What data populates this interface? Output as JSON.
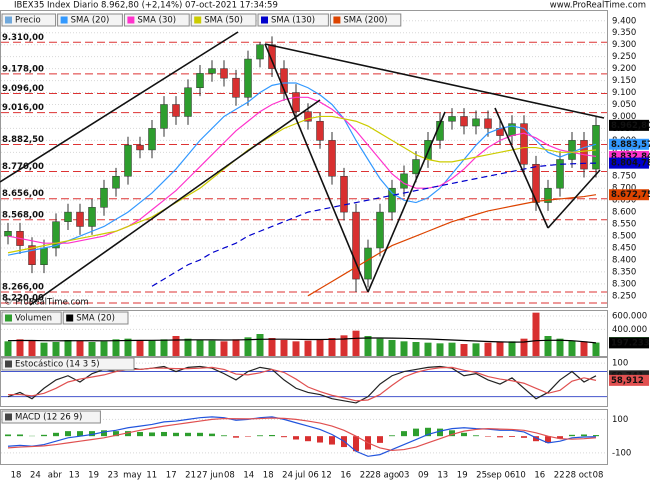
{
  "chart_data": [
    {
      "type": "candlestick",
      "title": "IBEX35 Index Diario 8.962,80 (+2,14%) 07-oct-2021 17:34:59",
      "watermark": "www.ProRealTime.com",
      "copyright": "© ProRealTime.com",
      "legend_title": "Precio",
      "color_up": "#2e9e2e",
      "color_down": "#d83030",
      "open": [
        8500,
        8520,
        8460,
        8380,
        8450,
        8560,
        8600,
        8540,
        8620,
        8700,
        8750,
        8880,
        8860,
        8950,
        9050,
        9000,
        9120,
        9180,
        9200,
        9160,
        9080,
        9240,
        9300,
        9200,
        9100,
        9020,
        8980,
        8900,
        8750,
        8600,
        8320,
        8450,
        8600,
        8700,
        8760,
        8820,
        8900,
        8980,
        9000,
        8960,
        8990,
        8950,
        8920,
        8970,
        8800,
        8640,
        8700,
        8820,
        8900,
        8780
      ],
      "high": [
        8555,
        8555,
        8495,
        8485,
        8595,
        8635,
        8635,
        8655,
        8735,
        8785,
        8915,
        8915,
        8985,
        9085,
        9085,
        9155,
        9215,
        9235,
        9235,
        9195,
        9275,
        9310,
        9335,
        9235,
        9135,
        9055,
        9015,
        8935,
        8785,
        8635,
        8485,
        8635,
        8735,
        8795,
        8855,
        8935,
        9015,
        9035,
        9035,
        9025,
        9025,
        8985,
        9005,
        9005,
        8835,
        8735,
        8855,
        8935,
        8935,
        8997.8
      ],
      "low": [
        8465,
        8425,
        8345,
        8345,
        8415,
        8525,
        8505,
        8505,
        8585,
        8665,
        8715,
        8825,
        8825,
        8915,
        8965,
        8965,
        9085,
        9145,
        9125,
        9045,
        9045,
        9205,
        9165,
        9065,
        8985,
        8945,
        8865,
        8715,
        8565,
        8266,
        8285,
        8415,
        8565,
        8665,
        8725,
        8785,
        8865,
        8945,
        8925,
        8925,
        8915,
        8885,
        8885,
        8765,
        8605,
        8605,
        8665,
        8785,
        8745,
        8745
      ],
      "close": [
        8520,
        8460,
        8380,
        8450,
        8560,
        8600,
        8540,
        8620,
        8700,
        8750,
        8880,
        8860,
        8950,
        9050,
        9000,
        9120,
        9180,
        9200,
        9160,
        9080,
        9240,
        9300,
        9200,
        9100,
        9020,
        8980,
        8900,
        8750,
        8600,
        8320,
        8450,
        8600,
        8700,
        8760,
        8820,
        8900,
        8980,
        9000,
        8960,
        8990,
        8950,
        8920,
        8970,
        8800,
        8640,
        8700,
        8820,
        8900,
        8780,
        8962.8
      ],
      "close_label": "8.962,80",
      "series": [
        {
          "name": "SMA (20)",
          "color": "#3399ff",
          "last_label": "8.883,57",
          "values": [
            8420,
            8430,
            8440,
            8450,
            8460,
            8480,
            8500,
            8520,
            8540,
            8570,
            8600,
            8640,
            8680,
            8730,
            8780,
            8840,
            8900,
            8950,
            9000,
            9030,
            9060,
            9100,
            9130,
            9140,
            9140,
            9120,
            9090,
            9050,
            8990,
            8900,
            8820,
            8740,
            8680,
            8650,
            8640,
            8660,
            8700,
            8760,
            8820,
            8880,
            8930,
            8950,
            8960,
            8950,
            8900,
            8850,
            8830,
            8850,
            8870,
            8883.57
          ]
        },
        {
          "name": "SMA (30)",
          "color": "#ff33cc",
          "last_label": "8.832,84",
          "values": [
            8500,
            8490,
            8480,
            8470,
            8470,
            8470,
            8480,
            8490,
            8500,
            8520,
            8540,
            8570,
            8610,
            8650,
            8690,
            8740,
            8790,
            8840,
            8890,
            8940,
            8980,
            9020,
            9050,
            9070,
            9080,
            9080,
            9060,
            9030,
            8990,
            8940,
            8880,
            8820,
            8760,
            8720,
            8700,
            8700,
            8710,
            8740,
            8780,
            8830,
            8870,
            8900,
            8920,
            8930,
            8910,
            8880,
            8860,
            8850,
            8840,
            8832.84
          ]
        },
        {
          "name": "SMA (50)",
          "color": "#cccc00",
          "values": [
            8430,
            8440,
            8450,
            8460,
            8470,
            8480,
            8490,
            8500,
            8510,
            8520,
            8540,
            8560,
            8580,
            8610,
            8640,
            8670,
            8700,
            8740,
            8780,
            8820,
            8860,
            8890,
            8920,
            8950,
            8970,
            8990,
            9000,
            9000,
            8990,
            8980,
            8960,
            8930,
            8900,
            8870,
            8840,
            8820,
            8810,
            8810,
            8820,
            8830,
            8840,
            8850,
            8860,
            8870,
            8870,
            8860,
            8850,
            8850,
            8855,
            8860
          ]
        },
        {
          "name": "SMA (130)",
          "color": "#0000cc",
          "dashed": true,
          "last_label": "8.804,78",
          "values": [
            null,
            null,
            null,
            null,
            null,
            null,
            null,
            null,
            null,
            null,
            null,
            null,
            8290,
            8320,
            8350,
            8380,
            8400,
            8430,
            8450,
            8470,
            8500,
            8520,
            8540,
            8560,
            8580,
            8600,
            8610,
            8620,
            8630,
            8640,
            8650,
            8660,
            8670,
            8680,
            8690,
            8700,
            8710,
            8720,
            8730,
            8740,
            8750,
            8760,
            8770,
            8780,
            8790,
            8795,
            8800,
            8802,
            8804,
            8804.78
          ]
        },
        {
          "name": "SMA (200)",
          "color": "#dd4400",
          "last_label": "8.672,75",
          "values": [
            null,
            null,
            null,
            null,
            null,
            null,
            null,
            null,
            null,
            null,
            null,
            null,
            null,
            null,
            null,
            null,
            null,
            null,
            null,
            null,
            null,
            null,
            null,
            null,
            null,
            8250,
            8280,
            8310,
            8340,
            8370,
            8400,
            8430,
            8460,
            8480,
            8500,
            8520,
            8540,
            8560,
            8575,
            8590,
            8605,
            8615,
            8625,
            8635,
            8645,
            8650,
            8655,
            8660,
            8665,
            8672.75
          ]
        }
      ],
      "ylim": [
        8220,
        9420
      ],
      "yticks": [
        {
          "value": 9400,
          "label": "9.400"
        },
        {
          "value": 9350,
          "label": "9.350"
        },
        {
          "value": 9300,
          "label": "9.300"
        },
        {
          "value": 9250,
          "label": "9.250"
        },
        {
          "value": 9200,
          "label": "9.200"
        },
        {
          "value": 9150,
          "label": "9.150"
        },
        {
          "value": 9100,
          "label": "9.100"
        },
        {
          "value": 9050,
          "label": "9.050"
        },
        {
          "value": 9000,
          "label": "9.000"
        },
        {
          "value": 8950,
          "label": "8.950"
        },
        {
          "value": 8900,
          "label": "8.900"
        },
        {
          "value": 8850,
          "label": "8.850"
        },
        {
          "value": 8800,
          "label": "8.800"
        },
        {
          "value": 8750,
          "label": "8.750"
        },
        {
          "value": 8700,
          "label": "8.700"
        },
        {
          "value": 8650,
          "label": "8.650"
        },
        {
          "value": 8600,
          "label": "8.600"
        },
        {
          "value": 8550,
          "label": "8.550"
        },
        {
          "value": 8500,
          "label": "8.500"
        },
        {
          "value": 8450,
          "label": "8.450"
        },
        {
          "value": 8400,
          "label": "8.400"
        },
        {
          "value": 8350,
          "label": "8.350"
        },
        {
          "value": 8300,
          "label": "8.300"
        },
        {
          "value": 8250,
          "label": "8.250"
        }
      ],
      "levels": [
        {
          "value": 9310,
          "label": "9.310,00"
        },
        {
          "value": 9178,
          "label": "9.178,00"
        },
        {
          "value": 9096,
          "label": "9.096,00"
        },
        {
          "value": 9016,
          "label": "9.016,00"
        },
        {
          "value": 8882.5,
          "label": "8.882,50"
        },
        {
          "value": 8770,
          "label": "8.770,00"
        },
        {
          "value": 8656,
          "label": "8.656,00"
        },
        {
          "value": 8568,
          "label": "8.568,00"
        },
        {
          "value": 8266,
          "label": "8.266,00"
        },
        {
          "value": 8220,
          "label": "8.220,00"
        }
      ],
      "x_labels": [
        "18",
        "24",
        "abr",
        "13",
        "19",
        "23",
        "may",
        "11",
        "17",
        "21",
        "27 jun",
        "08",
        "14",
        "18",
        "24",
        "jul 06",
        "12",
        "16",
        "22",
        "28 ago",
        "03",
        "09",
        "13",
        "19",
        "25",
        "sep 06",
        "10",
        "16",
        "22",
        "28 oct",
        "08"
      ]
    },
    {
      "type": "volume",
      "legend_title": "Volumen",
      "values": [
        220000,
        250000,
        230000,
        200000,
        210000,
        240000,
        230000,
        210000,
        220000,
        250000,
        260000,
        240000,
        230000,
        250000,
        300000,
        260000,
        240000,
        230000,
        220000,
        250000,
        280000,
        330000,
        270000,
        240000,
        220000,
        230000,
        250000,
        270000,
        310000,
        380000,
        300000,
        260000,
        240000,
        220000,
        210000,
        200000,
        190000,
        200000,
        180000,
        190000,
        200000,
        210000,
        220000,
        260000,
        650000,
        300000,
        260000,
        230000,
        220000,
        201215
      ],
      "last_label": "201.215",
      "series": [
        {
          "name": "SMA (20)",
          "color": "#000000",
          "last_label": "197.233",
          "values": [
            230000,
            232000,
            233000,
            230000,
            228000,
            229000,
            230000,
            229000,
            228000,
            230000,
            232000,
            234000,
            235000,
            237000,
            240000,
            242000,
            243000,
            242000,
            240000,
            241000,
            245000,
            250000,
            252000,
            252000,
            250000,
            248000,
            248000,
            250000,
            255000,
            265000,
            270000,
            270000,
            268000,
            265000,
            260000,
            255000,
            248000,
            240000,
            232000,
            225000,
            218000,
            212000,
            208000,
            210000,
            230000,
            235000,
            236000,
            230000,
            215000,
            197233
          ]
        }
      ],
      "ylim": [
        0,
        660000
      ],
      "yticks": [
        {
          "value": 600000,
          "label": "600.000"
        },
        {
          "value": 400000,
          "label": "400.000"
        }
      ]
    },
    {
      "type": "line",
      "legend_title": "Estocástico (14 3 5)",
      "series": [
        {
          "name": "%K",
          "color": "#222222",
          "last_label": "69,741",
          "values": [
            20,
            30,
            15,
            40,
            60,
            70,
            55,
            75,
            85,
            80,
            90,
            85,
            88,
            92,
            80,
            90,
            92,
            88,
            75,
            60,
            80,
            90,
            85,
            60,
            40,
            30,
            25,
            15,
            10,
            5,
            20,
            50,
            70,
            80,
            85,
            90,
            92,
            88,
            70,
            75,
            60,
            50,
            65,
            40,
            15,
            30,
            60,
            80,
            55,
            69.741
          ]
        },
        {
          "name": "%D",
          "color": "#e05050",
          "last_label": "58,912",
          "values": [
            25,
            25,
            22,
            28,
            40,
            55,
            62,
            67,
            72,
            80,
            85,
            85,
            88,
            88,
            87,
            87,
            88,
            90,
            85,
            74,
            72,
            77,
            85,
            78,
            62,
            43,
            32,
            23,
            17,
            10,
            12,
            25,
            47,
            67,
            78,
            85,
            89,
            90,
            83,
            78,
            68,
            62,
            58,
            52,
            40,
            28,
            35,
            57,
            65,
            58.912
          ]
        }
      ],
      "ylim": [
        0,
        110
      ],
      "yticks": [
        100
      ],
      "levels": [
        80,
        20
      ]
    },
    {
      "type": "macd",
      "legend_title": "MACD (12 26 9)",
      "histogram": [
        10,
        10,
        2,
        8,
        20,
        30,
        30,
        30,
        35,
        30,
        30,
        25,
        22,
        25,
        20,
        20,
        20,
        15,
        5,
        -9,
        -3,
        5,
        7,
        -6,
        -20,
        -30,
        -38,
        -50,
        -65,
        -90,
        -80,
        -40,
        5,
        30,
        45,
        50,
        45,
        35,
        20,
        5,
        -3,
        -7,
        -5,
        -10,
        -30,
        -40,
        -15,
        8,
        10,
        6.66
      ],
      "series": [
        {
          "name": "MACD",
          "color": "#2255dd",
          "values": [
            -60,
            -55,
            -60,
            -50,
            -30,
            -10,
            0,
            10,
            25,
            35,
            50,
            60,
            70,
            85,
            90,
            100,
            110,
            115,
            110,
            95,
            100,
            110,
            115,
            100,
            80,
            60,
            40,
            10,
            -30,
            -90,
            -120,
            -110,
            -80,
            -50,
            -20,
            10,
            30,
            45,
            50,
            45,
            42,
            35,
            35,
            25,
            -10,
            -40,
            -30,
            -10,
            -5,
            -3.3385
          ]
        },
        {
          "name": "Signal",
          "color": "#e05050",
          "values": [
            -70,
            -65,
            -62,
            -58,
            -50,
            -40,
            -30,
            -20,
            -10,
            5,
            20,
            35,
            48,
            60,
            70,
            80,
            90,
            100,
            105,
            104,
            103,
            105,
            108,
            106,
            100,
            90,
            78,
            60,
            35,
            0,
            -40,
            -70,
            -85,
            -80,
            -65,
            -40,
            -15,
            10,
            30,
            40,
            45,
            42,
            40,
            35,
            20,
            0,
            -15,
            -18,
            -15,
            -10
          ]
        }
      ],
      "ylim": [
        -160,
        150
      ],
      "yticks": [
        100,
        -100
      ]
    }
  ]
}
